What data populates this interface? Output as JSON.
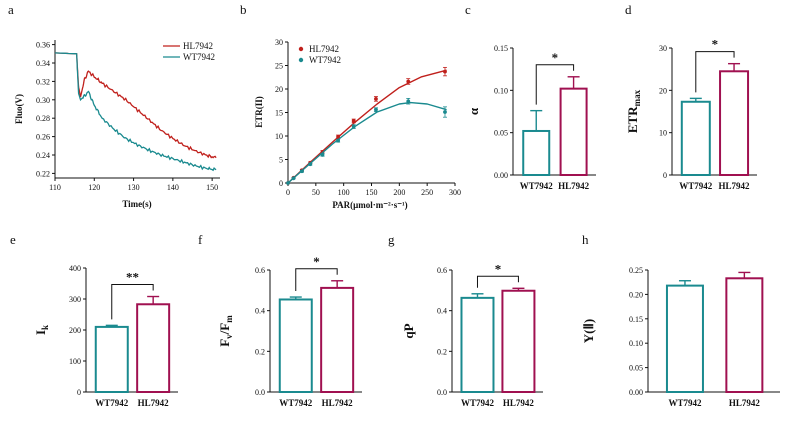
{
  "colors": {
    "wt": "#1a8a8f",
    "hl": "#a01050",
    "red": "#c0201c",
    "axis": "#111111"
  },
  "panels": {
    "a": "a",
    "b": "b",
    "c": "c",
    "d": "d",
    "e": "e",
    "f": "f",
    "g": "g",
    "h": "h"
  },
  "chart_data": [
    {
      "panel": "a",
      "type": "line",
      "title": "",
      "xlabel": "Time(s)",
      "ylabel": "Fluo(V)",
      "xlim": [
        110,
        152
      ],
      "ylim": [
        0.215,
        0.365
      ],
      "xticks": [
        110,
        120,
        130,
        140,
        150
      ],
      "yticks": [
        0.22,
        0.24,
        0.26,
        0.28,
        0.3,
        0.32,
        0.34,
        0.36
      ],
      "ytick_labels": [
        "0.22",
        "0.24",
        "0.26",
        "0.28",
        "0.30",
        "0.32",
        "0.34",
        "0.36"
      ],
      "legend": "top-right",
      "series": [
        {
          "name": "HL7942",
          "color": "#c0201c",
          "x": [
            110,
            115.5,
            116,
            116.5,
            117.5,
            118.5,
            120,
            122,
            125,
            128,
            131,
            134,
            137,
            140,
            143,
            146,
            149,
            151
          ],
          "y": [
            0.351,
            0.35,
            0.314,
            0.303,
            0.322,
            0.331,
            0.325,
            0.318,
            0.309,
            0.3,
            0.289,
            0.278,
            0.267,
            0.258,
            0.25,
            0.244,
            0.239,
            0.237
          ]
        },
        {
          "name": "WT7942",
          "color": "#1a8a8f",
          "x": [
            110,
            115.5,
            116,
            116.5,
            117.5,
            118.5,
            120,
            122,
            125,
            128,
            131,
            134,
            137,
            140,
            143,
            146,
            149,
            151
          ],
          "y": [
            0.351,
            0.35,
            0.307,
            0.3,
            0.304,
            0.309,
            0.294,
            0.28,
            0.268,
            0.258,
            0.251,
            0.245,
            0.24,
            0.236,
            0.232,
            0.228,
            0.225,
            0.224
          ]
        }
      ]
    },
    {
      "panel": "b",
      "type": "scatter",
      "title": "",
      "xlabel": "PAR(μmol·m⁻²·s⁻¹)",
      "ylabel": "ETR(II)",
      "xlim": [
        0,
        300
      ],
      "ylim": [
        0,
        30
      ],
      "xticks": [
        0,
        50,
        100,
        150,
        200,
        250,
        300
      ],
      "yticks": [
        0,
        5,
        10,
        15,
        20,
        25,
        30
      ],
      "legend": "top-left",
      "series": [
        {
          "name": "HL7942",
          "color": "#c0201c",
          "x": [
            0,
            10,
            25,
            40,
            62,
            90,
            118,
            158,
            216,
            282
          ],
          "y": [
            0,
            1.1,
            2.7,
            4.3,
            6.6,
            9.8,
            13.2,
            17.9,
            21.6,
            23.7
          ],
          "err": [
            0,
            0.1,
            0.2,
            0.2,
            0.3,
            0.4,
            0.4,
            0.5,
            0.6,
            0.9
          ],
          "fit_x": [
            0,
            40,
            80,
            120,
            160,
            200,
            240,
            285
          ],
          "fit_y": [
            0,
            4.4,
            8.7,
            12.9,
            16.8,
            20.3,
            22.6,
            24.0
          ]
        },
        {
          "name": "WT7942",
          "color": "#1a8a8f",
          "x": [
            0,
            10,
            25,
            40,
            62,
            90,
            118,
            158,
            216,
            282
          ],
          "y": [
            0,
            1.0,
            2.5,
            4.0,
            6.0,
            9.0,
            12.0,
            15.6,
            17.4,
            15.1
          ],
          "err": [
            0,
            0.1,
            0.2,
            0.2,
            0.3,
            0.3,
            0.4,
            0.4,
            0.6,
            1.1
          ],
          "fit_x": [
            0,
            40,
            80,
            120,
            160,
            200,
            220,
            250,
            285
          ],
          "fit_y": [
            0,
            4.2,
            8.3,
            12.0,
            15.1,
            16.8,
            17.1,
            16.8,
            15.6
          ]
        }
      ]
    },
    {
      "panel": "c",
      "type": "bar",
      "title": "",
      "ylabel": "α",
      "categories": [
        "WT7942",
        "HL7942"
      ],
      "values": [
        0.052,
        0.102
      ],
      "errors": [
        0.024,
        0.014
      ],
      "ylim": [
        0,
        0.15
      ],
      "yticks": [
        0,
        0.05,
        0.1,
        0.15
      ],
      "ytick_labels": [
        "0.00",
        "0.05",
        "0.10",
        "0.15"
      ],
      "significance": "*"
    },
    {
      "panel": "d",
      "type": "bar",
      "title": "",
      "ylabel": "ETR",
      "ylabel_sub": "max",
      "categories": [
        "WT7942",
        "HL7942"
      ],
      "values": [
        17.3,
        24.5
      ],
      "errors": [
        0.8,
        1.8
      ],
      "ylim": [
        0,
        30
      ],
      "yticks": [
        0,
        10,
        20,
        30
      ],
      "ytick_labels": [
        "0",
        "10",
        "20",
        "30"
      ],
      "significance": "*"
    },
    {
      "panel": "e",
      "type": "bar",
      "title": "",
      "ylabel": "I",
      "ylabel_sub": "k",
      "categories": [
        "WT7942",
        "HL7942"
      ],
      "values": [
        210,
        283
      ],
      "errors": [
        5,
        25
      ],
      "ylim": [
        0,
        400
      ],
      "yticks": [
        0,
        100,
        200,
        300,
        400
      ],
      "ytick_labels": [
        "0",
        "100",
        "200",
        "300",
        "400"
      ],
      "significance": "**"
    },
    {
      "panel": "f",
      "type": "bar",
      "title": "",
      "ylabel": "F",
      "ylabel_sub": "v",
      "ylabel2": "/F",
      "ylabel_sub2": "m",
      "categories": [
        "WT7942",
        "HL7942"
      ],
      "values": [
        0.455,
        0.512
      ],
      "errors": [
        0.012,
        0.035
      ],
      "ylim": [
        0,
        0.6
      ],
      "yticks": [
        0,
        0.2,
        0.4,
        0.6
      ],
      "ytick_labels": [
        "0.0",
        "0.2",
        "0.4",
        "0.6"
      ],
      "significance": "*"
    },
    {
      "panel": "g",
      "type": "bar",
      "title": "",
      "ylabel": "qP",
      "categories": [
        "WT7942",
        "HL7942"
      ],
      "values": [
        0.463,
        0.498
      ],
      "errors": [
        0.02,
        0.012
      ],
      "ylim": [
        0,
        0.6
      ],
      "yticks": [
        0,
        0.2,
        0.4,
        0.6
      ],
      "ytick_labels": [
        "0.0",
        "0.2",
        "0.4",
        "0.6"
      ],
      "significance": "*"
    },
    {
      "panel": "h",
      "type": "bar",
      "title": "",
      "ylabel": "Y(Ⅱ)",
      "categories": [
        "WT7942",
        "HL7942"
      ],
      "values": [
        0.218,
        0.233
      ],
      "errors": [
        0.01,
        0.012
      ],
      "ylim": [
        0,
        0.25
      ],
      "yticks": [
        0,
        0.05,
        0.1,
        0.15,
        0.2,
        0.25
      ],
      "ytick_labels": [
        "0.00",
        "0.05",
        "0.10",
        "0.15",
        "0.20",
        "0.25"
      ],
      "significance": ""
    }
  ]
}
